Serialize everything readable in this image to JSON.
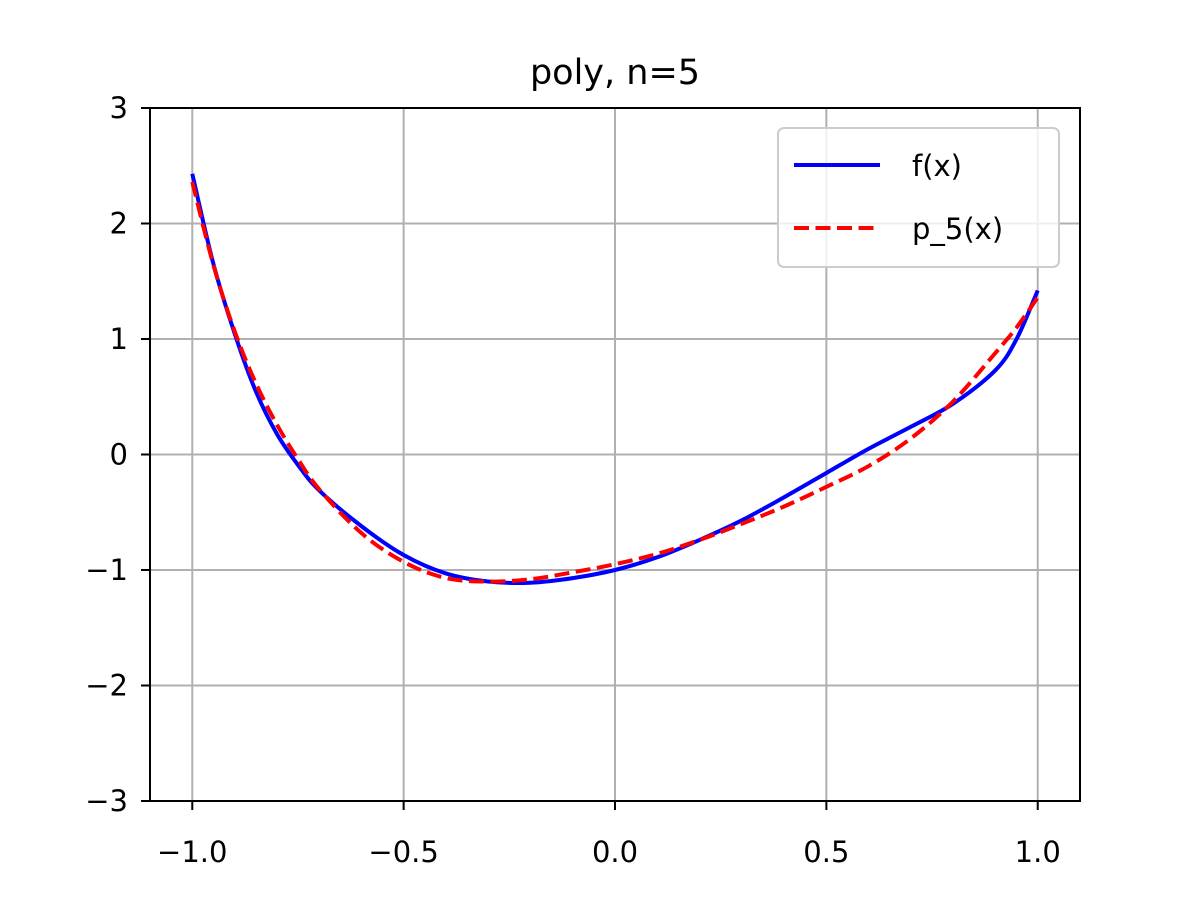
{
  "chart_data": {
    "type": "line",
    "title": "poly, n=5",
    "xlabel": "",
    "ylabel": "",
    "xlim": [
      -1.1,
      1.1
    ],
    "ylim": [
      -3,
      3
    ],
    "grid": true,
    "legend_placement": "top-right",
    "x_ticks": [
      -1.0,
      -0.5,
      0.0,
      0.5,
      1.0
    ],
    "x_tick_labels": [
      "−1.0",
      "−0.5",
      "0.0",
      "0.5",
      "1.0"
    ],
    "y_ticks": [
      -3,
      -2,
      -1,
      0,
      1,
      2,
      3
    ],
    "y_tick_labels": [
      "−3",
      "−2",
      "−1",
      "0",
      "1",
      "2",
      "3"
    ],
    "series": [
      {
        "name": "f(x)",
        "color": "#0000ff",
        "style": "solid",
        "x": [
          -1.0,
          -0.95,
          -0.9,
          -0.85,
          -0.8,
          -0.75,
          -0.7,
          -0.6,
          -0.5,
          -0.4,
          -0.3,
          -0.2,
          -0.1,
          0.0,
          0.1,
          0.2,
          0.3,
          0.4,
          0.5,
          0.6,
          0.7,
          0.8,
          0.9,
          0.95,
          1.0
        ],
        "y": [
          2.43,
          1.65,
          1.05,
          0.55,
          0.18,
          -0.09,
          -0.31,
          -0.62,
          -0.87,
          -1.03,
          -1.1,
          -1.11,
          -1.07,
          -1.0,
          -0.89,
          -0.74,
          -0.57,
          -0.37,
          -0.16,
          0.05,
          0.24,
          0.44,
          0.73,
          1.0,
          1.42
        ]
      },
      {
        "name": "p_5(x)",
        "color": "#ff0000",
        "style": "dashed",
        "x": [
          -1.0,
          -0.95,
          -0.9,
          -0.85,
          -0.8,
          -0.75,
          -0.7,
          -0.6,
          -0.5,
          -0.4,
          -0.3,
          -0.2,
          -0.1,
          0.0,
          0.1,
          0.2,
          0.3,
          0.4,
          0.5,
          0.6,
          0.7,
          0.8,
          0.9,
          0.95,
          1.0
        ],
        "y": [
          2.36,
          1.64,
          1.07,
          0.62,
          0.26,
          -0.04,
          -0.3,
          -0.68,
          -0.93,
          -1.07,
          -1.1,
          -1.08,
          -1.02,
          -0.95,
          -0.86,
          -0.74,
          -0.6,
          -0.45,
          -0.28,
          -0.1,
          0.14,
          0.46,
          0.88,
          1.1,
          1.36
        ]
      }
    ]
  }
}
